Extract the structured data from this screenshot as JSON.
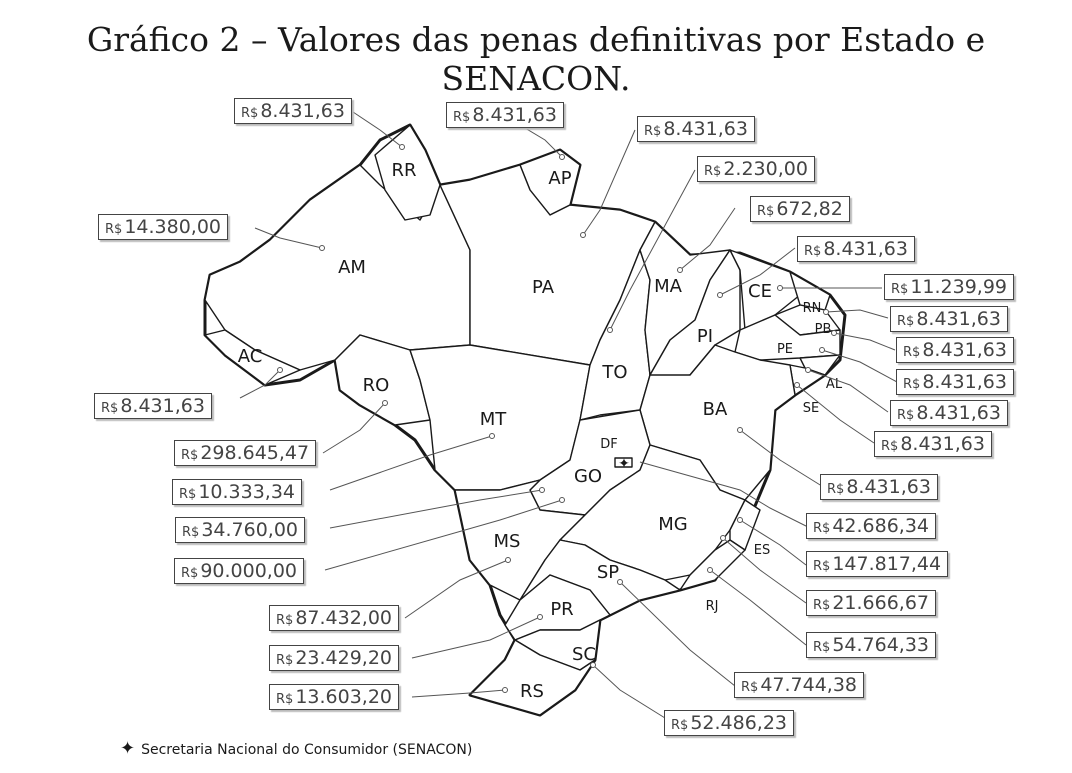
{
  "title": "Gráfico 2 – Valores das penas definitivas por Estado e SENACON.",
  "currency": "R$",
  "legend": {
    "symbol": "✦",
    "text": "Secretaria Nacional do Consumidor (SENACON)"
  },
  "states": {
    "RR": {
      "abbr": "RR",
      "value": "8.431,63"
    },
    "AP": {
      "abbr": "AP",
      "value": "8.431,63"
    },
    "PA": {
      "abbr": "PA",
      "value": "8.431,63"
    },
    "TO": {
      "abbr": "TO",
      "value": "2.230,00"
    },
    "MA": {
      "abbr": "MA",
      "value": "672,82"
    },
    "PI": {
      "abbr": "PI",
      "value": "8.431,63"
    },
    "CE": {
      "abbr": "CE",
      "value": "11.239,99"
    },
    "RN": {
      "abbr": "RN",
      "value": "8.431,63"
    },
    "PB": {
      "abbr": "PB",
      "value": "8.431,63"
    },
    "PE": {
      "abbr": "PE",
      "value": "8.431,63"
    },
    "AL": {
      "abbr": "AL",
      "value": "8.431,63"
    },
    "SE": {
      "abbr": "SE",
      "value": "8.431,63"
    },
    "AM": {
      "abbr": "AM",
      "value": "14.380,00"
    },
    "AC": {
      "abbr": "AC",
      "value": "8.431,63"
    },
    "RO": {
      "abbr": "RO",
      "value": "298.645,47"
    },
    "MT": {
      "abbr": "MT",
      "value": "10.333,34"
    },
    "GO": {
      "abbr": "GO",
      "value": "34.760,00"
    },
    "MS": {
      "abbr": "MS",
      "value": "90.000,00"
    },
    "DF": {
      "abbr": "DF",
      "value": "42.686,34"
    },
    "BA": {
      "abbr": "BA",
      "value": "8.431,63"
    },
    "MG": {
      "abbr": "MG",
      "value": "147.817,44"
    },
    "ES": {
      "abbr": "ES",
      "value": "21.666,67"
    },
    "RJ": {
      "abbr": "RJ",
      "value": "54.764,33"
    },
    "SP": {
      "abbr": "SP",
      "value": "47.744,38"
    },
    "PR": {
      "abbr": "PR",
      "value": "23.429,20"
    },
    "SC": {
      "abbr": "SC",
      "value": "52.486,23"
    },
    "RS": {
      "abbr": "RS",
      "value": "13.603,20"
    },
    "SENACON": {
      "value": "87.432,00"
    }
  }
}
